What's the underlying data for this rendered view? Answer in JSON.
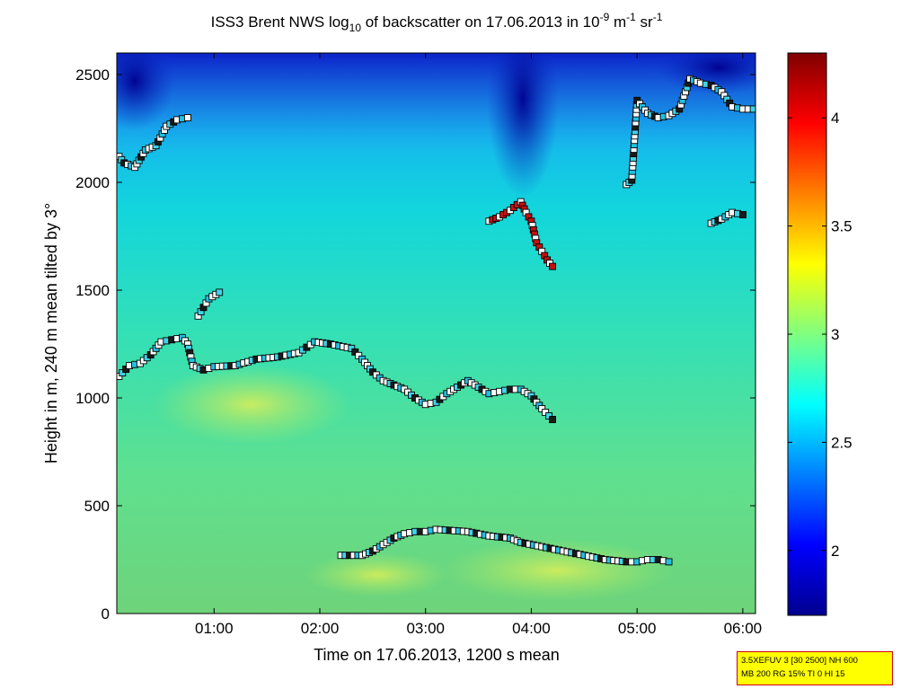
{
  "chart_data": {
    "type": "heatmap",
    "title_parts": {
      "pre": "ISS3 Brent NWS log",
      "sub": "10",
      "mid": " of backscatter on 17.06.2013 in 10",
      "sup1": "-9",
      "unit1": " m",
      "sup2": "-1",
      "unit2": " sr",
      "sup3": "-1"
    },
    "xlabel": "Time on 17.06.2013, 1200 s mean",
    "ylabel": "Height in m, 240 m mean tilted by 3°",
    "xlim_hours": [
      0.08,
      6.12
    ],
    "ylim": [
      0,
      2600
    ],
    "x_ticks": [
      {
        "hour": 1,
        "label": "01:00"
      },
      {
        "hour": 2,
        "label": "02:00"
      },
      {
        "hour": 3,
        "label": "03:00"
      },
      {
        "hour": 4,
        "label": "04:00"
      },
      {
        "hour": 5,
        "label": "05:00"
      },
      {
        "hour": 6,
        "label": "06:00"
      }
    ],
    "y_ticks": [
      {
        "value": 0,
        "label": "0"
      },
      {
        "value": 500,
        "label": "500"
      },
      {
        "value": 1000,
        "label": "1000"
      },
      {
        "value": 1500,
        "label": "1500"
      },
      {
        "value": 2000,
        "label": "2000"
      },
      {
        "value": 2500,
        "label": "2500"
      }
    ],
    "colorbar": {
      "range": [
        1.7,
        4.3
      ],
      "ticks": [
        {
          "value": 2,
          "label": "2"
        },
        {
          "value": 2.5,
          "label": "2.5"
        },
        {
          "value": 3,
          "label": "3"
        },
        {
          "value": 3.5,
          "label": "3.5"
        },
        {
          "value": 4,
          "label": "4"
        }
      ]
    },
    "grid": false,
    "legend": "none",
    "layers": [
      {
        "name": "mixing-layer",
        "points": [
          [
            0.1,
            1100
          ],
          [
            0.2,
            1150
          ],
          [
            0.3,
            1160
          ],
          [
            0.4,
            1200
          ],
          [
            0.5,
            1260
          ],
          [
            0.6,
            1270
          ],
          [
            0.7,
            1280
          ],
          [
            0.75,
            1250
          ],
          [
            0.8,
            1150
          ],
          [
            0.9,
            1130
          ],
          [
            1.0,
            1145
          ],
          [
            1.2,
            1150
          ],
          [
            1.4,
            1180
          ],
          [
            1.6,
            1190
          ],
          [
            1.8,
            1210
          ],
          [
            1.95,
            1260
          ],
          [
            2.1,
            1250
          ],
          [
            2.3,
            1230
          ],
          [
            2.4,
            1180
          ],
          [
            2.5,
            1120
          ],
          [
            2.6,
            1080
          ],
          [
            2.7,
            1060
          ],
          [
            2.8,
            1040
          ],
          [
            2.9,
            1000
          ],
          [
            3.0,
            970
          ],
          [
            3.1,
            980
          ],
          [
            3.2,
            1020
          ],
          [
            3.3,
            1050
          ],
          [
            3.4,
            1080
          ],
          [
            3.6,
            1020
          ],
          [
            3.7,
            1030
          ],
          [
            3.8,
            1040
          ],
          [
            3.9,
            1040
          ],
          [
            4.0,
            1010
          ],
          [
            4.1,
            950
          ],
          [
            4.2,
            900
          ]
        ]
      },
      {
        "name": "lower-layer",
        "points": [
          [
            2.2,
            270
          ],
          [
            2.4,
            270
          ],
          [
            2.5,
            290
          ],
          [
            2.6,
            320
          ],
          [
            2.7,
            350
          ],
          [
            2.8,
            370
          ],
          [
            2.9,
            380
          ],
          [
            3.0,
            380
          ],
          [
            3.1,
            390
          ],
          [
            3.4,
            380
          ],
          [
            3.6,
            360
          ],
          [
            3.8,
            350
          ],
          [
            3.9,
            330
          ],
          [
            4.1,
            310
          ],
          [
            4.3,
            290
          ],
          [
            4.5,
            270
          ],
          [
            4.7,
            250
          ],
          [
            4.9,
            240
          ],
          [
            5.0,
            240
          ],
          [
            5.1,
            250
          ],
          [
            5.2,
            250
          ],
          [
            5.3,
            240
          ]
        ]
      },
      {
        "name": "upper-layer-left",
        "points": [
          [
            0.1,
            2120
          ],
          [
            0.15,
            2090
          ],
          [
            0.25,
            2070
          ],
          [
            0.35,
            2150
          ],
          [
            0.45,
            2170
          ],
          [
            0.55,
            2260
          ],
          [
            0.65,
            2290
          ],
          [
            0.75,
            2300
          ]
        ]
      },
      {
        "name": "elevated-layer",
        "points": [
          [
            0.85,
            1380
          ],
          [
            0.9,
            1420
          ],
          [
            0.95,
            1460
          ],
          [
            1.05,
            1490
          ]
        ]
      },
      {
        "name": "cloud-layer",
        "points": [
          [
            3.6,
            1820
          ],
          [
            3.7,
            1840
          ],
          [
            3.8,
            1870
          ],
          [
            3.9,
            1910
          ],
          [
            3.95,
            1860
          ],
          [
            4.0,
            1820
          ],
          [
            4.05,
            1720
          ],
          [
            4.1,
            1680
          ],
          [
            4.15,
            1640
          ],
          [
            4.2,
            1610
          ]
        ]
      },
      {
        "name": "upper-layer-right",
        "points": [
          [
            4.9,
            1990
          ],
          [
            4.95,
            2010
          ],
          [
            5.0,
            2380
          ],
          [
            5.1,
            2320
          ],
          [
            5.2,
            2300
          ],
          [
            5.3,
            2310
          ],
          [
            5.4,
            2340
          ],
          [
            5.5,
            2480
          ],
          [
            5.6,
            2460
          ],
          [
            5.7,
            2450
          ],
          [
            5.8,
            2420
          ],
          [
            5.9,
            2350
          ],
          [
            6.0,
            2340
          ],
          [
            6.1,
            2340
          ]
        ]
      },
      {
        "name": "mid-layer-right",
        "points": [
          [
            5.7,
            1810
          ],
          [
            5.8,
            1830
          ],
          [
            5.9,
            1860
          ],
          [
            6.0,
            1850
          ]
        ]
      }
    ]
  },
  "info_box": {
    "line1": "3.5XEFUV 3 [30 2500] NH 600",
    "line2": "MB 200 RG 15% TI 0 HI 15"
  }
}
